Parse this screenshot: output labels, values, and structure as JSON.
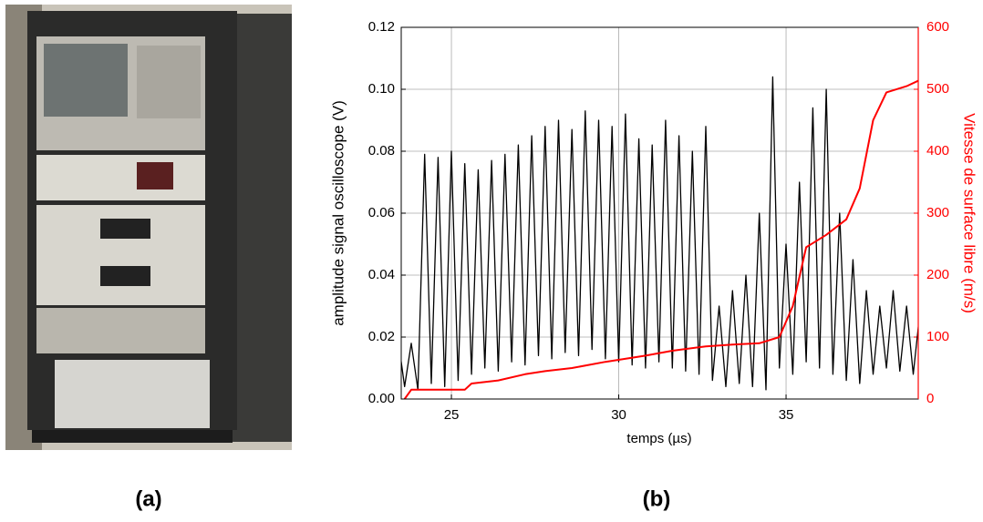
{
  "captions": {
    "a": "(a)",
    "b": "(b)"
  },
  "chart_data": {
    "type": "line",
    "xlabel": "temps (µs)",
    "ylabel": "amplitude signal oscilloscope (V)",
    "y2label": "Vitesse de surface libre (m/s)",
    "xlim": [
      23.5,
      38.95
    ],
    "xticks": [
      25,
      30,
      35
    ],
    "ylim": [
      0,
      0.12
    ],
    "yticks": [
      {
        "value": 0,
        "label": "0.00"
      },
      {
        "value": 0.02,
        "label": "0.02"
      },
      {
        "value": 0.04,
        "label": "0.04"
      },
      {
        "value": 0.06,
        "label": "0.06"
      },
      {
        "value": 0.08,
        "label": "0.08"
      },
      {
        "value": 0.1,
        "label": "0.10"
      },
      {
        "value": 0.12,
        "label": "0.12"
      }
    ],
    "y2lim": [
      0,
      600
    ],
    "y2ticks": [
      0,
      100,
      200,
      300,
      400,
      500,
      600
    ],
    "y2color": "#ff0000",
    "grid": true,
    "series": [
      {
        "color": "#000000",
        "x": [
          23.4,
          23.6,
          23.8,
          24.0,
          24.2,
          24.4,
          24.6,
          24.8,
          25.0,
          25.2,
          25.4,
          25.6,
          25.8,
          26.0,
          26.2,
          26.4,
          26.6,
          26.8,
          27.0,
          27.2,
          27.4,
          27.6,
          27.8,
          28.0,
          28.2,
          28.4,
          28.6,
          28.8,
          29.0,
          29.2,
          29.4,
          29.6,
          29.8,
          30.0,
          30.2,
          30.4,
          30.6,
          30.8,
          31.0,
          31.2,
          31.4,
          31.6,
          31.8,
          32.0,
          32.2,
          32.4,
          32.6,
          32.8,
          33.0,
          33.2,
          33.4,
          33.6,
          33.8,
          34.0,
          34.2,
          34.4,
          34.6,
          34.8,
          35.0,
          35.2,
          35.4,
          35.6,
          35.8,
          36.0,
          36.2,
          36.4,
          36.6,
          36.8,
          37.0,
          37.2,
          37.4,
          37.6,
          37.8,
          38.0,
          38.2,
          38.4,
          38.6,
          38.8,
          39.0
        ],
        "values": [
          0.02,
          0.004,
          0.018,
          0.003,
          0.079,
          0.005,
          0.078,
          0.004,
          0.08,
          0.006,
          0.076,
          0.008,
          0.074,
          0.01,
          0.077,
          0.009,
          0.079,
          0.012,
          0.082,
          0.011,
          0.085,
          0.014,
          0.088,
          0.013,
          0.09,
          0.015,
          0.087,
          0.014,
          0.093,
          0.016,
          0.09,
          0.013,
          0.088,
          0.012,
          0.092,
          0.011,
          0.084,
          0.01,
          0.082,
          0.012,
          0.09,
          0.01,
          0.085,
          0.009,
          0.08,
          0.008,
          0.088,
          0.006,
          0.03,
          0.004,
          0.035,
          0.005,
          0.04,
          0.004,
          0.06,
          0.003,
          0.104,
          0.01,
          0.05,
          0.008,
          0.07,
          0.012,
          0.094,
          0.01,
          0.1,
          0.008,
          0.06,
          0.006,
          0.045,
          0.005,
          0.035,
          0.008,
          0.03,
          0.01,
          0.035,
          0.009,
          0.03,
          0.008,
          0.028
        ]
      },
      {
        "color": "#ff0000",
        "axis": "y2",
        "x": [
          23.6,
          23.8,
          25.4,
          25.6,
          26.4,
          27.2,
          27.8,
          28.6,
          29.6,
          30.8,
          31.6,
          32.6,
          33.4,
          34.2,
          34.8,
          35.2,
          35.6,
          36.2,
          36.8,
          37.2,
          37.6,
          38.0,
          38.6,
          39.0
        ],
        "values": [
          0,
          15,
          15,
          25,
          30,
          40,
          45,
          50,
          60,
          70,
          78,
          85,
          88,
          90,
          100,
          150,
          245,
          265,
          290,
          340,
          450,
          495,
          505,
          515
        ]
      }
    ]
  }
}
